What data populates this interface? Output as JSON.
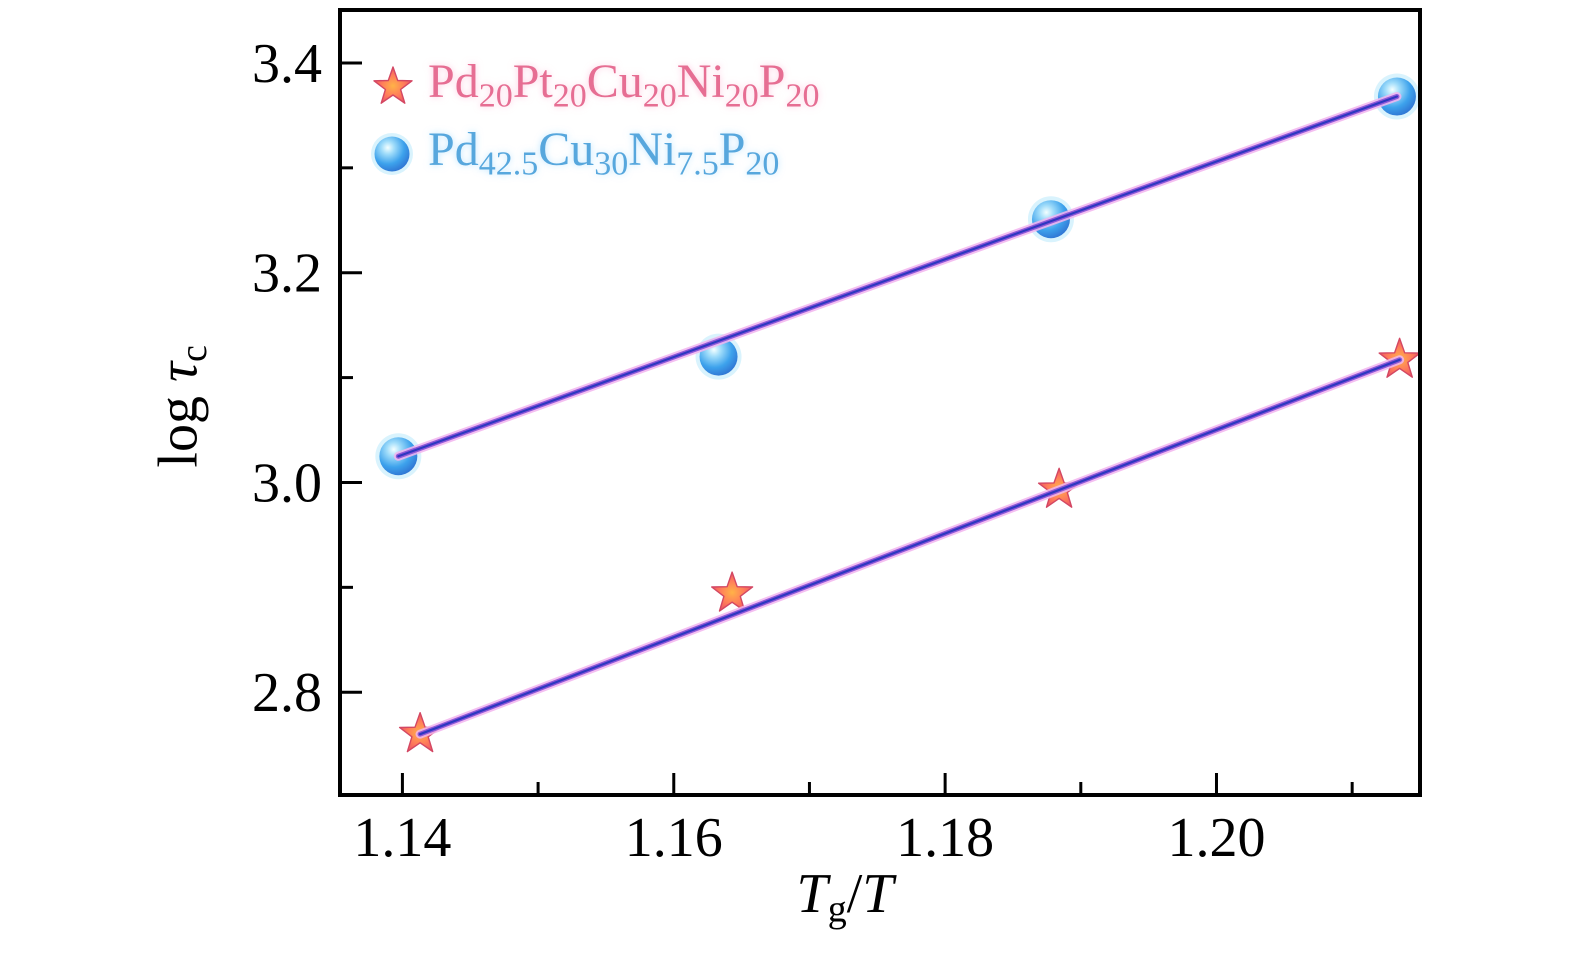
{
  "figure": {
    "background": "#ffffff",
    "frame_color": "#000000",
    "tick_color": "#000000",
    "tick_label_color": "#000000"
  },
  "axis_labels": {
    "x_segments": [
      {
        "text": "T",
        "style": "italic"
      },
      {
        "text": "g",
        "style": "sub"
      },
      {
        "text": "/",
        "style": "normal"
      },
      {
        "text": "T",
        "style": "italic"
      }
    ],
    "y_segments": [
      {
        "text": "log ",
        "style": "normal"
      },
      {
        "text": "τ",
        "style": "italic"
      },
      {
        "text": "c",
        "style": "sub"
      }
    ]
  },
  "legend": {
    "position": "upper-left",
    "items": [
      {
        "marker": "star",
        "text_color": "#e66e93",
        "glow": "rgba(255,160,200,0.55)",
        "segments": [
          [
            "Pd",
            "20"
          ],
          [
            "Pt",
            "20"
          ],
          [
            "Cu",
            "20"
          ],
          [
            "Ni",
            "20"
          ],
          [
            "P",
            "20"
          ]
        ]
      },
      {
        "marker": "sphere",
        "text_color": "#57a7dd",
        "glow": "rgba(130,205,255,0.55)",
        "segments": [
          [
            "Pd",
            "42.5"
          ],
          [
            "Cu",
            "30"
          ],
          [
            "Ni",
            "7.5"
          ],
          [
            "P",
            "20"
          ]
        ]
      }
    ]
  },
  "markers": {
    "star": {
      "inner": "#ffb347",
      "mid": "#ff7e5a",
      "outer": "#e84a66",
      "stroke": "#d34763"
    },
    "sphere": {
      "highlight": "#f4ffff",
      "light": "#9fdcfa",
      "body": "#3da2ec",
      "deep": "#2e6fd0",
      "rim": "#5a67dd",
      "halo": "rgba(130,215,250,0.3)"
    }
  },
  "fit_line": {
    "outer": "#f2b4ee",
    "mid": "#8e57d8",
    "core": "#2d38c0"
  },
  "chart_data": {
    "type": "scatter",
    "title": "",
    "xlabel": "Tg/T",
    "ylabel": "log τc",
    "xlim": [
      1.1354,
      1.215
    ],
    "ylim": [
      2.702,
      3.4505
    ],
    "grid": false,
    "legend_position": "upper-left",
    "x_ticks": {
      "major": [
        1.14,
        1.16,
        1.18,
        1.2
      ],
      "minor": [
        1.15,
        1.17,
        1.19,
        1.21
      ],
      "labels": [
        "1.14",
        "1.16",
        "1.18",
        "1.20"
      ]
    },
    "y_ticks": {
      "major": [
        3.4,
        3.2,
        3.0,
        2.8
      ],
      "minor": [
        3.3,
        3.1,
        2.9
      ],
      "labels": [
        "3.4",
        "3.2",
        "3.0",
        "2.8"
      ]
    },
    "series": [
      {
        "name": "Pd20Pt20Cu20Ni20P20",
        "marker": "star",
        "x": [
          1.1413,
          1.1643,
          1.1884,
          1.2135
        ],
        "y": [
          2.76,
          2.894,
          2.993,
          3.117
        ],
        "fit_line": true
      },
      {
        "name": "Pd42.5Cu30Ni7.5P20",
        "marker": "sphere",
        "x": [
          1.1397,
          1.1633,
          1.1878,
          1.2133
        ],
        "y": [
          3.025,
          3.12,
          3.251,
          3.368
        ],
        "fit_line": true
      }
    ]
  }
}
